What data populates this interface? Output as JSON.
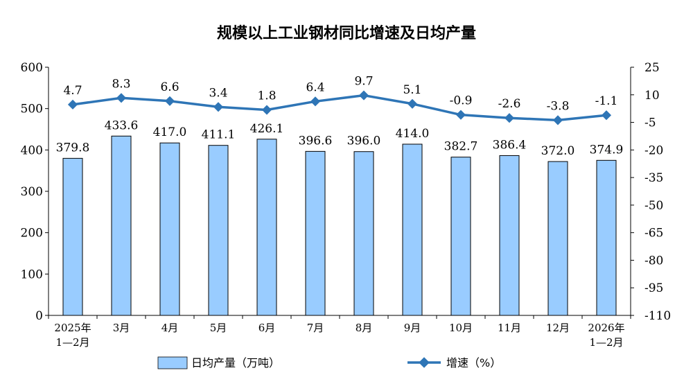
{
  "chart_data": {
    "type": "bar+line",
    "title": "规模以上工业钢材同比增速及日均产量",
    "categories": [
      [
        "2025年",
        "1—2月"
      ],
      [
        "3月"
      ],
      [
        "4月"
      ],
      [
        "5月"
      ],
      [
        "6月"
      ],
      [
        "7月"
      ],
      [
        "8月"
      ],
      [
        "9月"
      ],
      [
        "10月"
      ],
      [
        "11月"
      ],
      [
        "12月"
      ],
      [
        "2026年",
        "1—2月"
      ]
    ],
    "series": [
      {
        "name": "日均产量（万吨）",
        "type": "bar",
        "axis": "left",
        "color": "#99ccff",
        "values": [
          379.8,
          433.6,
          417.0,
          411.1,
          426.1,
          396.6,
          396.0,
          414.0,
          382.7,
          386.4,
          372.0,
          374.9
        ],
        "labels": [
          "379.8",
          "433.6",
          "417.0",
          "411.1",
          "426.1",
          "396.6",
          "396.0",
          "414.0",
          "382.7",
          "386.4",
          "372.0",
          "374.9"
        ]
      },
      {
        "name": "增速（%）",
        "type": "line",
        "axis": "right",
        "color": "#2e75b6",
        "values": [
          4.7,
          8.3,
          6.6,
          3.4,
          1.8,
          6.4,
          9.7,
          5.1,
          -0.9,
          -2.6,
          -3.8,
          -1.1
        ],
        "labels": [
          "4.7",
          "8.3",
          "6.6",
          "3.4",
          "1.8",
          "6.4",
          "9.7",
          "5.1",
          "-0.9",
          "-2.6",
          "-3.8",
          "-1.1"
        ]
      }
    ],
    "y_left": {
      "ylim": [
        0,
        600
      ],
      "ticks": [
        "0",
        "100",
        "200",
        "300",
        "400",
        "500",
        "600"
      ]
    },
    "y_right": {
      "ylim": [
        -110,
        25
      ],
      "ticks": [
        "-110",
        "-95",
        "-80",
        "-65",
        "-50",
        "-35",
        "-20",
        "-5",
        "10",
        "25"
      ]
    },
    "grid": false,
    "legend_position": "bottom"
  }
}
